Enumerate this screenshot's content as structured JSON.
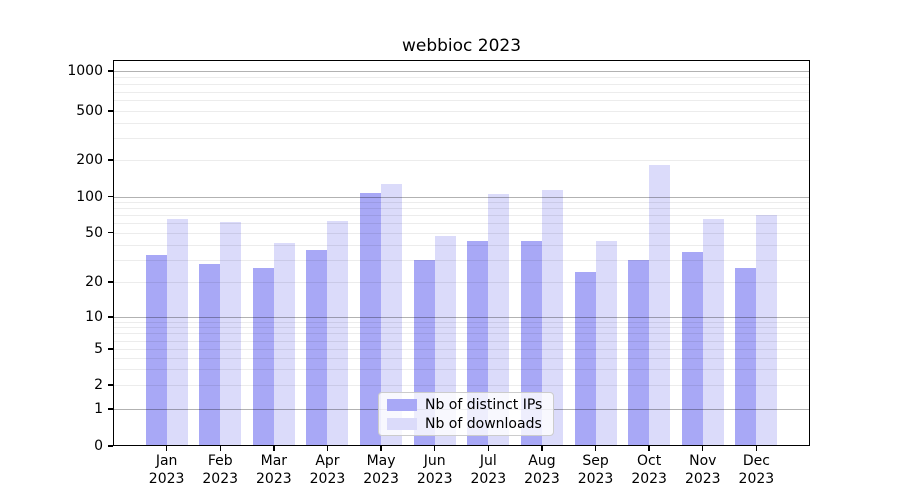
{
  "title": "webbioc 2023",
  "chart_data": {
    "type": "bar",
    "title": "webbioc 2023",
    "yscale": "symlog",
    "ylim": [
      0,
      1000
    ],
    "y_ticks": [
      0,
      1,
      2,
      5,
      10,
      20,
      50,
      100,
      200,
      500,
      1000
    ],
    "grid": true,
    "legend_position": "lower center",
    "categories": [
      "Jan",
      "Feb",
      "Mar",
      "Apr",
      "May",
      "Jun",
      "Jul",
      "Aug",
      "Sep",
      "Oct",
      "Nov",
      "Dec"
    ],
    "year_label": "2023",
    "series": [
      {
        "name": "Nb of distinct IPs",
        "color": "#a8a8f6",
        "values": [
          33,
          28,
          26,
          36,
          107,
          30,
          43,
          43,
          24,
          30,
          35,
          26
        ]
      },
      {
        "name": "Nb of downloads",
        "color": "#dbdbfa",
        "values": [
          65,
          61,
          41,
          62,
          126,
          47,
          105,
          113,
          43,
          182,
          65,
          70
        ]
      }
    ]
  },
  "colors": {
    "ips_bar": "#a8a8f6",
    "downloads_bar": "#dbdbfa",
    "major_grid": "#b3b3b3",
    "minor_grid": "#ececec",
    "axis": "#000000",
    "legend_border": "#cccccc"
  }
}
